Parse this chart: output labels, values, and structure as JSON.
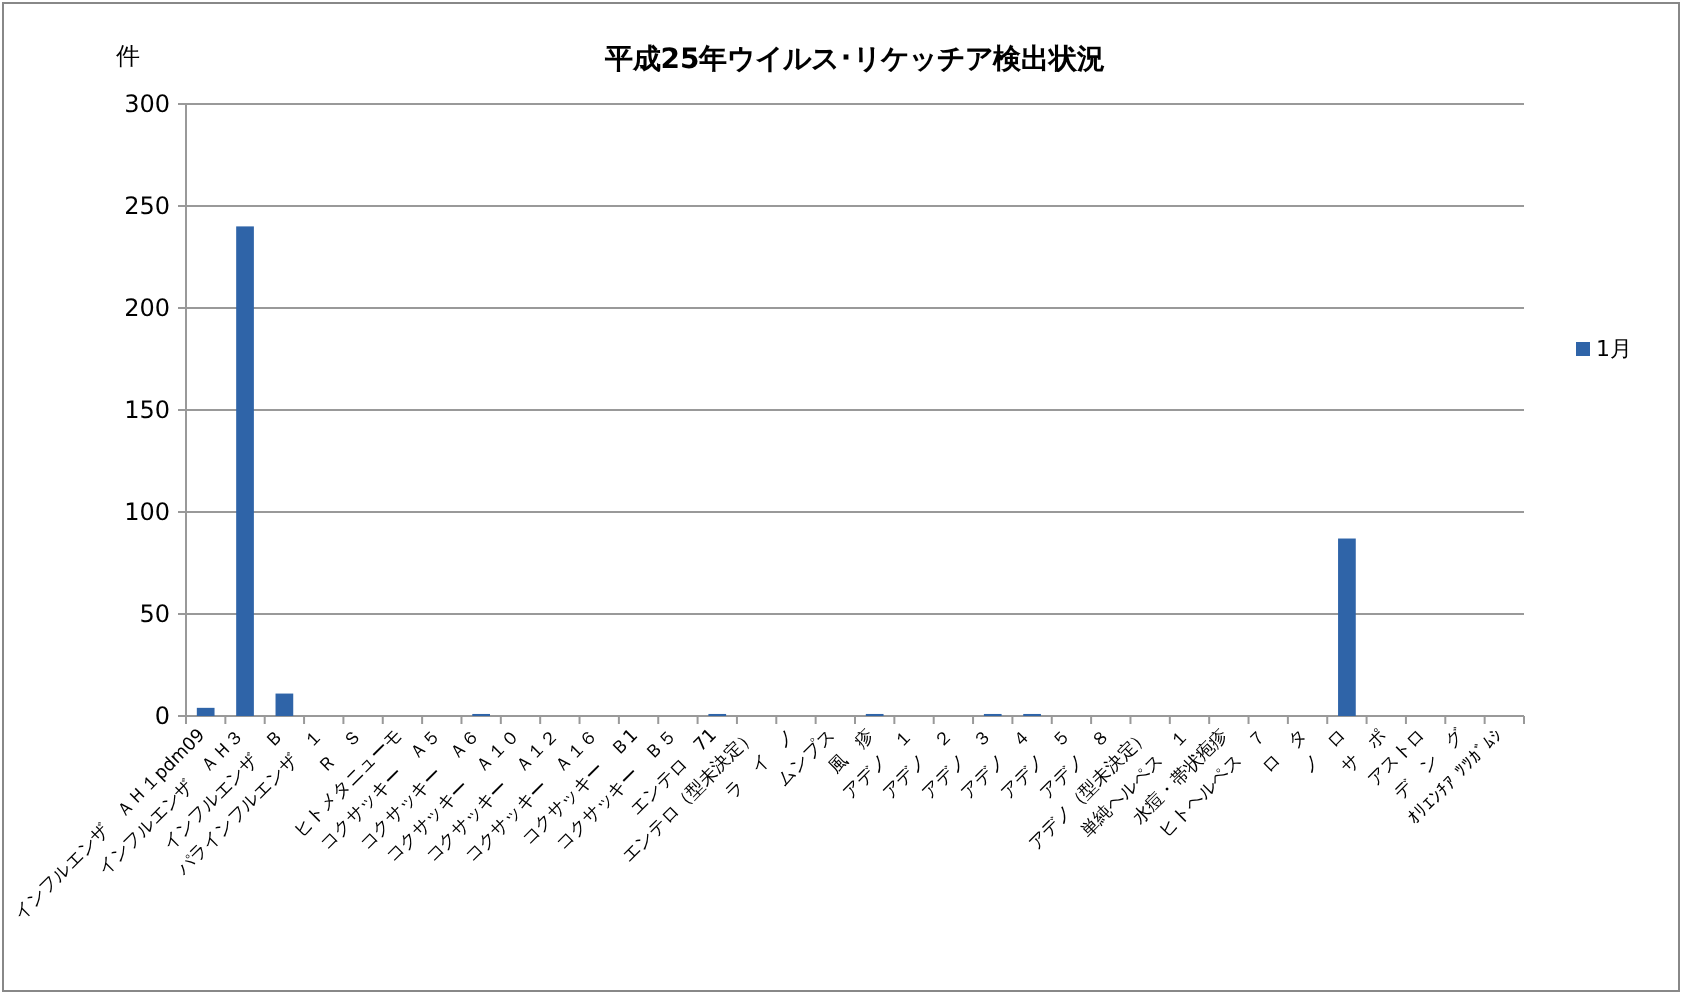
{
  "chart_data": {
    "type": "bar",
    "title": "平成25年ウイルス･リケッチア検出状況",
    "ylabel": "件",
    "categories": [
      "インフルエンザ　ＡＨ１pdm09",
      "インフルエンザ　ＡＨ３",
      "インフルエンザ　Ｂ",
      "パラインフルエンザ　１",
      "Ｒ　Ｓ",
      "ヒトメタニューモ",
      "コクサッキー　Ａ５",
      "コクサッキー　Ａ６",
      "コクサッキー　Ａ１０",
      "コクサッキー　Ａ１２",
      "コクサッキー　Ａ１６",
      "コクサッキー　Ｂ1",
      "コクサッキー　Ｂ５",
      "エンテロ　71",
      "エンテロ（型未決定）",
      "ラ　イ　ノ",
      "ムンプス",
      "風　疹",
      "アデノ　１",
      "アデノ　２",
      "アデノ　３",
      "アデノ　４",
      "アデノ　５",
      "アデノ　８",
      "アデノ（型未決定）",
      "単純ヘルペス　１",
      "水痘・帯状疱疹",
      "ヒトヘルペス　７",
      "ロ　タ",
      "ノ　ロ",
      "サ　ポ",
      "アストロ",
      "デ　ン　グ",
      "ｵﾘｴﾝﾁｱ ﾂﾂｶﾞﾑｼ"
    ],
    "series": [
      {
        "name": "1月",
        "color": "#2f64a8",
        "values": [
          4,
          240,
          11,
          0,
          0,
          0,
          0,
          1,
          0,
          0,
          0,
          0,
          0,
          1,
          0,
          0,
          0,
          1,
          0,
          0,
          1,
          1,
          0,
          0,
          0,
          0,
          0,
          0,
          0,
          87,
          0,
          0,
          0,
          0
        ]
      }
    ],
    "ylim": [
      0,
      300
    ],
    "yticks": [
      0,
      50,
      100,
      150,
      200,
      250,
      300
    ],
    "grid": "y",
    "legend": "right"
  }
}
